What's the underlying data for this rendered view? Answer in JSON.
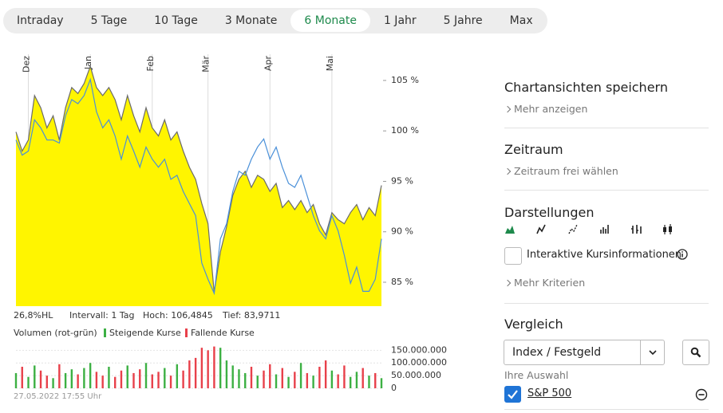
{
  "tabs": {
    "items": [
      "Intraday",
      "5 Tage",
      "10 Tage",
      "3 Monate",
      "6 Monate",
      "1 Jahr",
      "5 Jahre",
      "Max"
    ],
    "active": 4
  },
  "chart_data": [
    {
      "type": "area",
      "categories": [
        null,
        null,
        "Dez",
        null,
        null,
        null,
        null,
        null,
        null,
        null,
        null,
        null,
        "Jan",
        null,
        null,
        null,
        null,
        null,
        null,
        null,
        null,
        null,
        "Feb",
        null,
        null,
        null,
        null,
        null,
        null,
        null,
        null,
        "Mär",
        null,
        null,
        null,
        null,
        null,
        null,
        null,
        null,
        null,
        "Apr",
        null,
        null,
        null,
        null,
        null,
        null,
        null,
        null,
        null,
        "Mai",
        null,
        null,
        null,
        null,
        null,
        null,
        null,
        null
      ],
      "series": [
        {
          "fill": "#fff500",
          "color": "#6b6b6b",
          "values": [
            99.9,
            98.0,
            99.1,
            103.5,
            102.3,
            100.3,
            101.5,
            99.1,
            102.3,
            104.3,
            103.7,
            104.7,
            106.4,
            104.3,
            103.5,
            104.3,
            103.1,
            101.1,
            103.5,
            101.5,
            99.9,
            102.3,
            100.3,
            99.5,
            101.1,
            99.1,
            99.9,
            98.0,
            96.4,
            95.2,
            92.8,
            90.8,
            84.0,
            88.0,
            90.5,
            93.6,
            95.2,
            96.0,
            94.4,
            95.6,
            95.2,
            94.0,
            94.8,
            92.4,
            93.1,
            92.2,
            93.1,
            91.9,
            92.7,
            90.8,
            89.7,
            91.9,
            91.2,
            90.8,
            91.9,
            92.7,
            91.2,
            92.4,
            91.6,
            94.6
          ]
        },
        {
          "color": "#4a90d9",
          "values": [
            99.1,
            97.6,
            98.0,
            101.1,
            100.3,
            99.1,
            99.1,
            98.8,
            101.5,
            103.1,
            102.7,
            103.5,
            105.1,
            101.9,
            100.3,
            101.1,
            99.5,
            97.2,
            99.5,
            98.0,
            96.4,
            98.4,
            97.2,
            96.4,
            97.2,
            95.2,
            95.6,
            94.0,
            92.8,
            91.6,
            86.9,
            85.3,
            83.9,
            89.3,
            90.8,
            94.0,
            96.0,
            95.6,
            97.2,
            98.4,
            99.2,
            97.2,
            98.4,
            96.4,
            94.8,
            94.4,
            95.6,
            93.6,
            91.6,
            90.1,
            89.3,
            91.6,
            90.1,
            87.7,
            84.9,
            86.5,
            84.1,
            84.1,
            85.3,
            89.3
          ]
        }
      ],
      "ylim": [
        82.63,
        107.6
      ],
      "yticks": [
        {
          "value": 85,
          "label": "85 %"
        },
        {
          "value": 90,
          "label": "90 %"
        },
        {
          "value": 95,
          "label": "95 %"
        },
        {
          "value": 100,
          "label": "100 %"
        },
        {
          "value": 105,
          "label": "105 %"
        }
      ],
      "x_grid": true
    },
    {
      "type": "bar",
      "legend_title": "Volumen (rot-grün)",
      "series": [
        {
          "name": "Steigende Kurse",
          "color": "#3cb043",
          "values": [
            60000000,
            null,
            45000000,
            90000000,
            null,
            null,
            40000000,
            null,
            60000000,
            75000000,
            null,
            80000000,
            100000000,
            null,
            null,
            85000000,
            null,
            null,
            90000000,
            null,
            null,
            100000000,
            null,
            null,
            80000000,
            null,
            95000000,
            null,
            null,
            null,
            null,
            null,
            null,
            160000000,
            110000000,
            90000000,
            75000000,
            60000000,
            null,
            50000000,
            null,
            null,
            55000000,
            null,
            45000000,
            null,
            100000000,
            null,
            50000000,
            null,
            null,
            70000000,
            null,
            null,
            45000000,
            65000000,
            null,
            50000000,
            null,
            40000000
          ]
        },
        {
          "name": "Fallende Kurse",
          "color": "#e8404a",
          "values": [
            null,
            85000000,
            null,
            null,
            70000000,
            50000000,
            null,
            95000000,
            null,
            null,
            55000000,
            null,
            null,
            65000000,
            50000000,
            null,
            45000000,
            70000000,
            null,
            60000000,
            75000000,
            null,
            55000000,
            65000000,
            null,
            50000000,
            null,
            70000000,
            110000000,
            120000000,
            160000000,
            150000000,
            165000000,
            null,
            null,
            null,
            null,
            null,
            85000000,
            null,
            70000000,
            95000000,
            null,
            80000000,
            null,
            65000000,
            null,
            60000000,
            null,
            85000000,
            110000000,
            null,
            55000000,
            90000000,
            null,
            null,
            80000000,
            null,
            60000000,
            null
          ]
        }
      ],
      "ylim": [
        0,
        170000000
      ],
      "yticks": [
        0,
        {
          "value": 50000000,
          "label": "50.000.000"
        },
        {
          "value": 100000000,
          "label": "100.000.000"
        },
        {
          "value": 150000000,
          "label": "150.000.000"
        }
      ],
      "grid": true
    }
  ],
  "stats": [
    "26,8%HL",
    "Intervall: 1 Tag",
    "Hoch: 106,4845",
    "Tief: 83,9711"
  ],
  "timestamp": "27.05.2022 17:55 Uhr",
  "sidebar": {
    "save": {
      "title": "Chartansichten speichern",
      "link": "Mehr anzeigen"
    },
    "period": {
      "title": "Zeitraum",
      "link": "Zeitraum frei wählen"
    },
    "display": {
      "title": "Darstellungen",
      "checkbox_label": "Interaktive Kursinformationen",
      "link": "Mehr Kriterien"
    },
    "compare": {
      "title": "Vergleich",
      "select": "Index / Festgeld",
      "selection_label": "Ihre Auswahl",
      "selected": [
        {
          "label": "S&P 500",
          "checked": true
        }
      ]
    }
  }
}
